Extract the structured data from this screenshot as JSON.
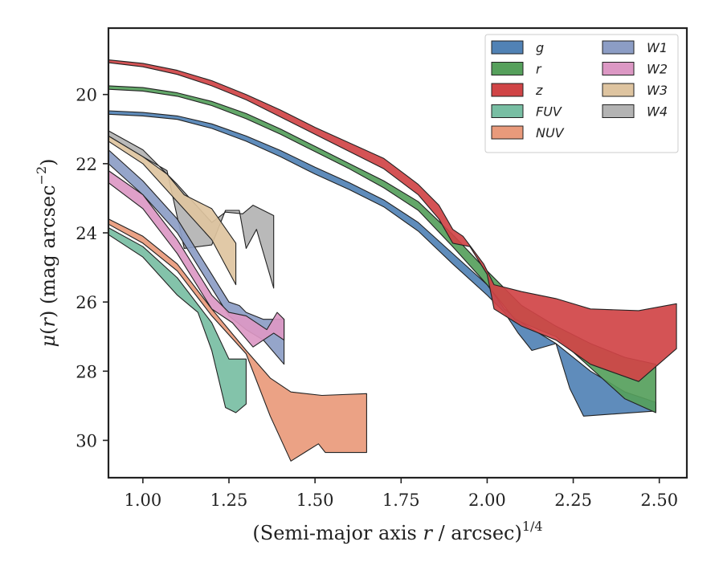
{
  "chart_data": {
    "type": "area",
    "xlabel": "(Semi-major axis r / arcsec)",
    "xlabel_exponent": "1/4",
    "ylabel": "μ(r) (mag arcsec",
    "ylabel_exponent": "−2",
    "ylabel_close": ")",
    "xlim": [
      0.9,
      2.58
    ],
    "ylim": [
      31.08,
      18.08
    ],
    "y_inverted": true,
    "grid": false,
    "legend_position": "top-right",
    "legend_columns": 2,
    "x_ticks": [
      1.0,
      1.25,
      1.5,
      1.75,
      2.0,
      2.25,
      2.5
    ],
    "x_tick_labels": [
      "1.00",
      "1.25",
      "1.50",
      "1.75",
      "2.00",
      "2.25",
      "2.50"
    ],
    "y_ticks": [
      20,
      22,
      24,
      26,
      28,
      30
    ],
    "y_tick_labels": [
      "20",
      "22",
      "24",
      "26",
      "28",
      "30"
    ],
    "series": [
      {
        "name": "W4",
        "color": "#b3b3b3",
        "upper": [
          [
            0.9,
            21.05
          ],
          [
            1.0,
            21.6
          ],
          [
            1.1,
            22.6
          ],
          [
            1.2,
            23.7
          ],
          [
            1.24,
            23.4
          ],
          [
            1.29,
            23.45
          ],
          [
            1.32,
            23.2
          ],
          [
            1.38,
            23.5
          ]
        ],
        "lower": [
          [
            0.9,
            21.2
          ],
          [
            1.0,
            21.8
          ],
          [
            1.07,
            22.2
          ],
          [
            1.12,
            24.45
          ],
          [
            1.2,
            24.35
          ],
          [
            1.24,
            23.35
          ],
          [
            1.28,
            23.35
          ],
          [
            1.3,
            24.45
          ],
          [
            1.33,
            23.9
          ],
          [
            1.38,
            25.6
          ]
        ]
      },
      {
        "name": "W3",
        "color": "#dec4a0",
        "upper": [
          [
            0.9,
            21.2
          ],
          [
            1.0,
            21.8
          ],
          [
            1.07,
            22.3
          ],
          [
            1.12,
            22.9
          ],
          [
            1.2,
            23.3
          ],
          [
            1.27,
            24.3
          ]
        ],
        "lower": [
          [
            0.9,
            21.35
          ],
          [
            1.0,
            22.0
          ],
          [
            1.1,
            23.1
          ],
          [
            1.2,
            24.2
          ],
          [
            1.27,
            25.5
          ]
        ]
      },
      {
        "name": "W1",
        "color": "#8c9dc5",
        "upper": [
          [
            0.9,
            21.6
          ],
          [
            1.0,
            22.5
          ],
          [
            1.1,
            23.6
          ],
          [
            1.2,
            25.2
          ],
          [
            1.25,
            26.0
          ],
          [
            1.28,
            26.1
          ],
          [
            1.3,
            26.3
          ],
          [
            1.35,
            26.5
          ],
          [
            1.41,
            26.5
          ]
        ],
        "lower": [
          [
            0.9,
            22.0
          ],
          [
            1.0,
            22.9
          ],
          [
            1.1,
            24.0
          ],
          [
            1.2,
            25.6
          ],
          [
            1.25,
            26.4
          ],
          [
            1.3,
            26.8
          ],
          [
            1.35,
            27.1
          ],
          [
            1.41,
            27.8
          ]
        ]
      },
      {
        "name": "W2",
        "color": "#dc98c4",
        "upper": [
          [
            0.9,
            22.2
          ],
          [
            1.0,
            22.9
          ],
          [
            1.1,
            24.2
          ],
          [
            1.2,
            25.8
          ],
          [
            1.25,
            26.3
          ],
          [
            1.3,
            26.4
          ],
          [
            1.36,
            26.8
          ],
          [
            1.39,
            26.3
          ],
          [
            1.41,
            26.5
          ]
        ],
        "lower": [
          [
            0.9,
            22.55
          ],
          [
            1.0,
            23.3
          ],
          [
            1.1,
            24.6
          ],
          [
            1.2,
            26.2
          ],
          [
            1.26,
            26.6
          ],
          [
            1.32,
            27.3
          ],
          [
            1.38,
            26.9
          ],
          [
            1.41,
            27.1
          ]
        ]
      },
      {
        "name": "NUV",
        "color": "#e99a7b",
        "upper": [
          [
            0.9,
            23.6
          ],
          [
            1.0,
            24.1
          ],
          [
            1.1,
            24.9
          ],
          [
            1.2,
            26.2
          ],
          [
            1.3,
            27.4
          ],
          [
            1.37,
            28.2
          ],
          [
            1.43,
            28.6
          ],
          [
            1.52,
            28.7
          ],
          [
            1.65,
            28.65
          ]
        ],
        "lower": [
          [
            0.9,
            23.75
          ],
          [
            1.0,
            24.3
          ],
          [
            1.1,
            25.1
          ],
          [
            1.2,
            26.4
          ],
          [
            1.3,
            27.5
          ],
          [
            1.37,
            29.3
          ],
          [
            1.43,
            30.6
          ],
          [
            1.51,
            30.1
          ],
          [
            1.53,
            30.35
          ],
          [
            1.65,
            30.35
          ]
        ]
      },
      {
        "name": "FUV",
        "color": "#78bea3",
        "upper": [
          [
            0.9,
            23.85
          ],
          [
            1.0,
            24.4
          ],
          [
            1.1,
            25.3
          ],
          [
            1.2,
            26.6
          ],
          [
            1.25,
            27.65
          ],
          [
            1.3,
            27.65
          ]
        ],
        "lower": [
          [
            0.9,
            24.05
          ],
          [
            1.0,
            24.7
          ],
          [
            1.1,
            25.8
          ],
          [
            1.16,
            26.3
          ],
          [
            1.2,
            27.4
          ],
          [
            1.24,
            29.05
          ],
          [
            1.27,
            29.2
          ],
          [
            1.3,
            28.95
          ]
        ]
      },
      {
        "name": "g",
        "color": "#5182b5",
        "upper": [
          [
            0.9,
            20.47
          ],
          [
            1.0,
            20.52
          ],
          [
            1.1,
            20.62
          ],
          [
            1.2,
            20.85
          ],
          [
            1.3,
            21.2
          ],
          [
            1.4,
            21.62
          ],
          [
            1.5,
            22.1
          ],
          [
            1.6,
            22.55
          ],
          [
            1.7,
            23.05
          ],
          [
            1.8,
            23.7
          ],
          [
            1.9,
            24.6
          ],
          [
            2.0,
            25.5
          ],
          [
            2.05,
            26.2
          ],
          [
            2.1,
            26.6
          ],
          [
            2.2,
            27.2
          ],
          [
            2.3,
            28.0
          ],
          [
            2.4,
            28.6
          ],
          [
            2.49,
            28.9
          ]
        ],
        "lower": [
          [
            0.9,
            20.57
          ],
          [
            1.0,
            20.62
          ],
          [
            1.1,
            20.72
          ],
          [
            1.2,
            20.98
          ],
          [
            1.3,
            21.35
          ],
          [
            1.4,
            21.8
          ],
          [
            1.5,
            22.3
          ],
          [
            1.6,
            22.75
          ],
          [
            1.7,
            23.25
          ],
          [
            1.8,
            23.95
          ],
          [
            1.9,
            24.9
          ],
          [
            2.0,
            25.8
          ],
          [
            2.05,
            26.3
          ],
          [
            2.09,
            26.9
          ],
          [
            2.13,
            27.4
          ],
          [
            2.2,
            27.2
          ],
          [
            2.24,
            28.5
          ],
          [
            2.28,
            29.3
          ],
          [
            2.49,
            29.15
          ]
        ]
      },
      {
        "name": "r",
        "color": "#56a05c",
        "upper": [
          [
            0.9,
            19.75
          ],
          [
            1.0,
            19.8
          ],
          [
            1.1,
            19.95
          ],
          [
            1.2,
            20.2
          ],
          [
            1.3,
            20.55
          ],
          [
            1.4,
            21.0
          ],
          [
            1.5,
            21.5
          ],
          [
            1.6,
            22.0
          ],
          [
            1.7,
            22.5
          ],
          [
            1.8,
            23.1
          ],
          [
            1.9,
            24.05
          ],
          [
            2.0,
            25.1
          ],
          [
            2.1,
            26.1
          ],
          [
            2.2,
            26.7
          ],
          [
            2.3,
            27.2
          ],
          [
            2.4,
            27.6
          ],
          [
            2.49,
            27.8
          ]
        ],
        "lower": [
          [
            0.9,
            19.85
          ],
          [
            1.0,
            19.9
          ],
          [
            1.1,
            20.05
          ],
          [
            1.2,
            20.32
          ],
          [
            1.3,
            20.7
          ],
          [
            1.4,
            21.15
          ],
          [
            1.5,
            21.65
          ],
          [
            1.6,
            22.15
          ],
          [
            1.7,
            22.7
          ],
          [
            1.8,
            23.35
          ],
          [
            1.9,
            24.4
          ],
          [
            2.0,
            25.5
          ],
          [
            2.08,
            26.5
          ],
          [
            2.15,
            26.8
          ],
          [
            2.2,
            27.0
          ],
          [
            2.3,
            27.9
          ],
          [
            2.4,
            28.8
          ],
          [
            2.49,
            29.2
          ]
        ]
      },
      {
        "name": "z",
        "color": "#d04446",
        "upper": [
          [
            0.9,
            19.0
          ],
          [
            1.0,
            19.1
          ],
          [
            1.1,
            19.3
          ],
          [
            1.2,
            19.6
          ],
          [
            1.3,
            20.0
          ],
          [
            1.4,
            20.45
          ],
          [
            1.5,
            20.95
          ],
          [
            1.6,
            21.4
          ],
          [
            1.7,
            21.85
          ],
          [
            1.8,
            22.6
          ],
          [
            1.86,
            23.2
          ],
          [
            1.9,
            23.9
          ],
          [
            1.93,
            24.1
          ],
          [
            1.99,
            24.9
          ],
          [
            2.02,
            25.5
          ],
          [
            2.1,
            25.7
          ],
          [
            2.2,
            25.9
          ],
          [
            2.3,
            26.2
          ],
          [
            2.44,
            26.25
          ],
          [
            2.55,
            26.05
          ]
        ],
        "lower": [
          [
            0.9,
            19.08
          ],
          [
            1.0,
            19.2
          ],
          [
            1.1,
            19.42
          ],
          [
            1.2,
            19.75
          ],
          [
            1.3,
            20.15
          ],
          [
            1.4,
            20.65
          ],
          [
            1.5,
            21.15
          ],
          [
            1.6,
            21.65
          ],
          [
            1.7,
            22.15
          ],
          [
            1.8,
            22.9
          ],
          [
            1.86,
            23.6
          ],
          [
            1.9,
            24.3
          ],
          [
            1.95,
            24.4
          ],
          [
            2.0,
            25.2
          ],
          [
            2.02,
            26.2
          ],
          [
            2.1,
            26.7
          ],
          [
            2.2,
            27.1
          ],
          [
            2.3,
            27.8
          ],
          [
            2.44,
            28.3
          ],
          [
            2.55,
            27.35
          ]
        ]
      }
    ],
    "legend_order": [
      "g",
      "r",
      "z",
      "FUV",
      "NUV",
      "W1",
      "W2",
      "W3",
      "W4"
    ]
  }
}
